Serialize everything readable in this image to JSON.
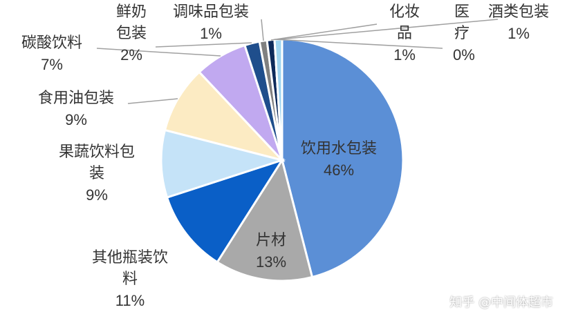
{
  "chart_data": {
    "type": "pie",
    "categories": [
      "饮用水包装",
      "片材",
      "其他瓶装饮料",
      "果蔬饮料包装",
      "食用油包装",
      "碳酸饮料",
      "鲜奶包装",
      "调味品包装",
      "化妆品",
      "医疗",
      "酒类包装"
    ],
    "values": [
      46,
      13,
      11,
      9,
      9,
      7,
      2,
      1,
      1,
      0,
      1
    ],
    "value_labels": [
      "46%",
      "13%",
      "11%",
      "9%",
      "9%",
      "7%",
      "2%",
      "1%",
      "1%",
      "0%",
      "1%"
    ],
    "colors": [
      "#5b8fd6",
      "#a9a9a9",
      "#0a5fc7",
      "#c5e3f8",
      "#fcebc3",
      "#c1a9f0",
      "#1f4e8c",
      "#808080",
      "#0d2a5a",
      "#6fa0d8",
      "#9fd4f0"
    ],
    "watermark": "知乎 @中间体超市"
  }
}
